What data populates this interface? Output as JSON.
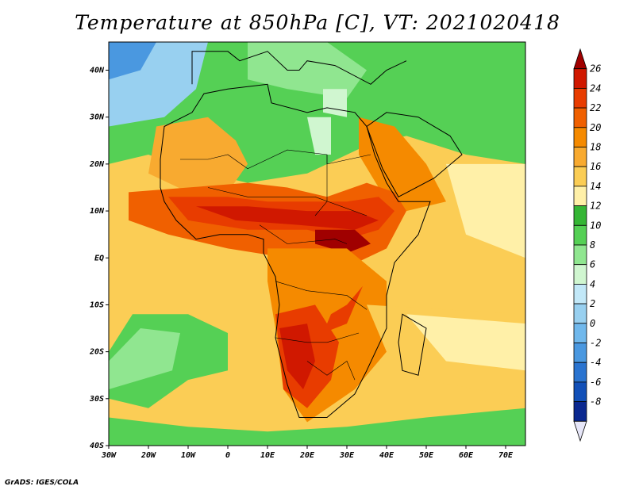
{
  "title": "Temperature at 850hPa [C], VT: 2021020418",
  "footer": "GrADS: IGES/COLA",
  "map": {
    "lon_range": [
      -30,
      75
    ],
    "lat_range": [
      -40,
      46
    ],
    "x_ticks": [
      "30W",
      "20W",
      "10W",
      "0",
      "10E",
      "20E",
      "30E",
      "40E",
      "50E",
      "60E",
      "70E"
    ],
    "y_ticks": [
      "40S",
      "30S",
      "20S",
      "10S",
      "EQ",
      "10N",
      "20N",
      "30N",
      "40N"
    ]
  },
  "colorbar": {
    "labels": [
      "26",
      "24",
      "22",
      "20",
      "18",
      "16",
      "14",
      "12",
      "10",
      "8",
      "6",
      "4",
      "2",
      "0",
      "-2",
      "-4",
      "-6",
      "-8"
    ],
    "colors": [
      "#a00000",
      "#d01800",
      "#e83c00",
      "#f06000",
      "#f58a00",
      "#f8aa30",
      "#fbcd55",
      "#fff0a8",
      "#35b635",
      "#55d055",
      "#90e690",
      "#d0f6d0",
      "#c2e8f8",
      "#98d0f0",
      "#70b8ec",
      "#4a98e0",
      "#2a74d0",
      "#1250b8",
      "#0a2890",
      "#1a1a6a"
    ]
  }
}
